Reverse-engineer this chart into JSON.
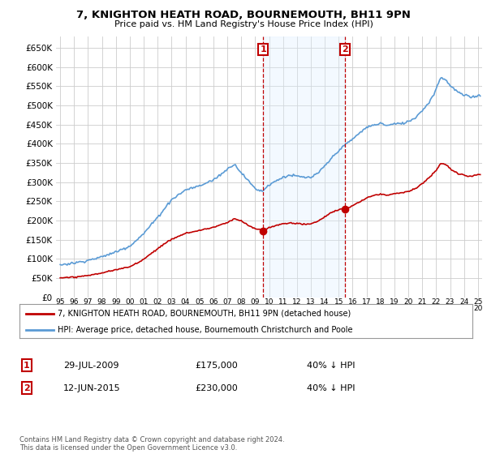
{
  "title": "7, KNIGHTON HEATH ROAD, BOURNEMOUTH, BH11 9PN",
  "subtitle": "Price paid vs. HM Land Registry's House Price Index (HPI)",
  "legend_line1": "7, KNIGHTON HEATH ROAD, BOURNEMOUTH, BH11 9PN (detached house)",
  "legend_line2": "HPI: Average price, detached house, Bournemouth Christchurch and Poole",
  "transaction1_date": "29-JUL-2009",
  "transaction1_price": "£175,000",
  "transaction1_hpi": "40% ↓ HPI",
  "transaction2_date": "12-JUN-2015",
  "transaction2_price": "£230,000",
  "transaction2_hpi": "40% ↓ HPI",
  "footer": "Contains HM Land Registry data © Crown copyright and database right 2024.\nThis data is licensed under the Open Government Licence v3.0.",
  "hpi_color": "#5b9bd5",
  "price_color": "#c00000",
  "marker_color": "#c00000",
  "vline_color": "#c00000",
  "background_color": "#ffffff",
  "plot_bg_color": "#ffffff",
  "grid_color": "#cccccc",
  "shade_color": "#ddeeff",
  "ylim": [
    0,
    680000
  ],
  "yticks": [
    0,
    50000,
    100000,
    150000,
    200000,
    250000,
    300000,
    350000,
    400000,
    450000,
    500000,
    550000,
    600000,
    650000
  ],
  "transaction1_x": 2009.57,
  "transaction2_x": 2015.44,
  "xlim_left": 1994.7,
  "xlim_right": 2025.3
}
